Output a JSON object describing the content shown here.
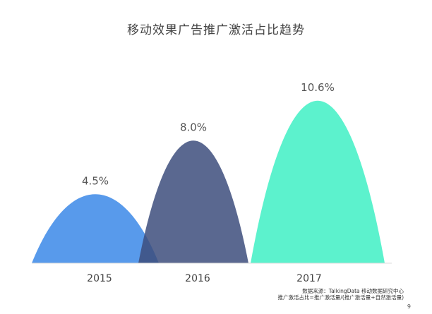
{
  "chart_data": {
    "type": "area",
    "title": "移动效果广告推广激活占比趋势",
    "categories": [
      "2015",
      "2016",
      "2017"
    ],
    "values": [
      4.5,
      8.0,
      10.6
    ],
    "value_labels": [
      "4.5%",
      "8.0%",
      "10.6%"
    ],
    "unit": "%",
    "ylim": [
      0,
      11.5
    ],
    "grid": false,
    "legend": "none",
    "colors": [
      "#4f95ea",
      "#3d4d7c",
      "#3ff0c4"
    ],
    "opacities": [
      0.95,
      0.85,
      0.85
    ]
  },
  "source_line1": "数据来源：TalkingData 移动数据研究中心",
  "source_line2": "推广激活占比=推广激活量/(推广激活量+自然激活量)",
  "page_number": "9"
}
